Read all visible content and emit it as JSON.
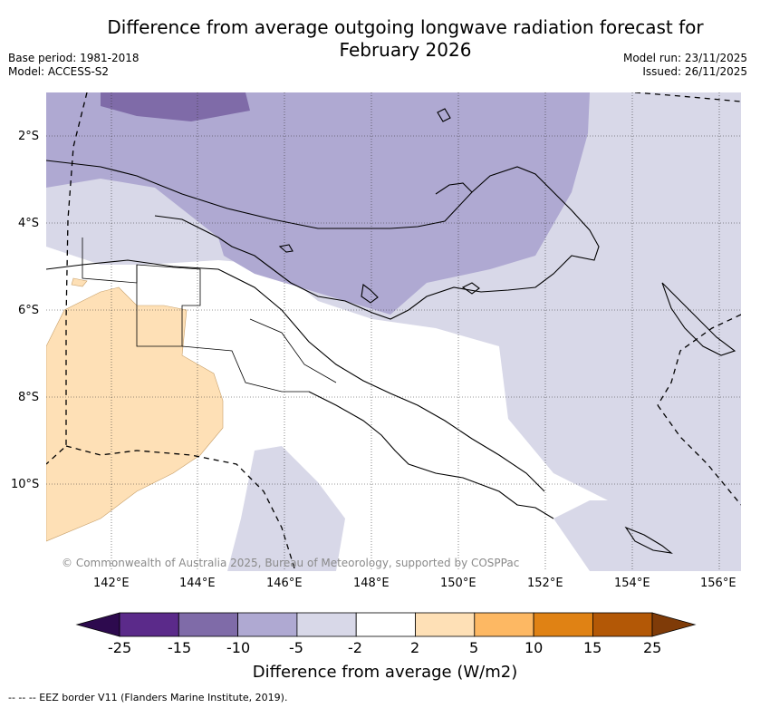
{
  "title_line1": "Difference from average outgoing longwave radiation forecast for",
  "title_line2": "February 2026",
  "base_period": "Base period: 1981-2018",
  "model": "Model: ACCESS-S2",
  "model_run": "Model run: 23/11/2025",
  "issued": "Issued: 26/11/2025",
  "copyright": "© Commonwealth of Australia 2025, Bureau of Meteorology, supported by COSPPac",
  "lat_labels": [
    "2°S",
    "4°S",
    "6°S",
    "8°S",
    "10°S"
  ],
  "lon_labels": [
    "142°E",
    "144°E",
    "146°E",
    "148°E",
    "150°E",
    "152°E",
    "154°E",
    "156°E"
  ],
  "colorbar": {
    "ticks": [
      "-25",
      "-15",
      "-10",
      "-5",
      "-2",
      "2",
      "5",
      "10",
      "15",
      "25"
    ],
    "colors": [
      "#2d0a4e",
      "#5b2a8a",
      "#7f6ba8",
      "#afa9d2",
      "#d8d8e8",
      "#ffffff",
      "#fee0b6",
      "#fdb863",
      "#e08214",
      "#b35806",
      "#7f3b08"
    ],
    "title": "Difference from average (W/m2)"
  },
  "legend_eez": "--  --  -- EEZ border V11 (Flanders Marine Institute, 2019)."
}
